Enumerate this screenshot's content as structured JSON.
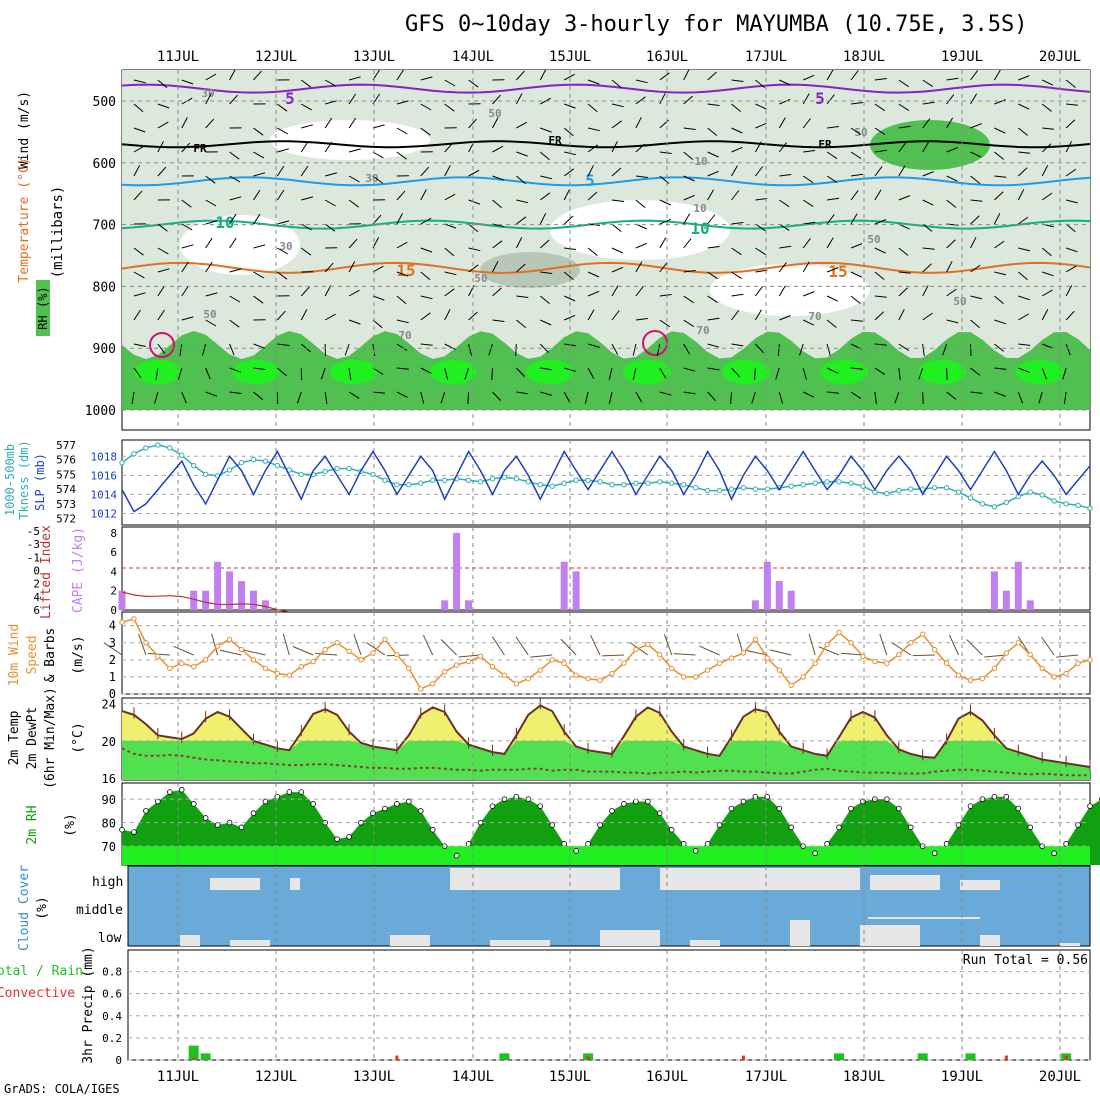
{
  "title": "GFS 0~10day 3-hourly for MAYUMBA (10.75E, 3.5S)",
  "credit": "GrADS: COLA/IGES",
  "date_labels": [
    "11JUL",
    "12JUL",
    "13JUL",
    "14JUL",
    "15JUL",
    "16JUL",
    "17JUL",
    "18JUL",
    "19JUL",
    "20JUL"
  ],
  "panels": {
    "upper": {
      "axis_label_1": "(millibars)",
      "rh_label": "RH (%)",
      "temp_label": "Temperature (°C)",
      "wind_label": "Wind (m/s)",
      "ticks": [
        "500",
        "600",
        "700",
        "800",
        "900",
        "1000"
      ],
      "contour_labels": [
        "5",
        "5",
        "FR",
        "FR",
        "FR",
        "5",
        "10",
        "10",
        "15",
        "15",
        "30",
        "30",
        "30",
        "50",
        "50",
        "50",
        "50",
        "50",
        "50",
        "70",
        "70",
        "70",
        "10",
        "10"
      ]
    },
    "slp": {
      "label_a": "1000-500mb",
      "label_b": "Tkness (dm)",
      "label_c": "SLP (mb)",
      "left_ticks": [
        "577",
        "576",
        "575",
        "574",
        "573",
        "572"
      ],
      "right_ticks": [
        "1018",
        "1016",
        "1014",
        "1012"
      ]
    },
    "cape": {
      "label_a": "Lifted Index",
      "label_b": "CAPE (J/kg)",
      "left_ticks": [
        "-5",
        "-3",
        "-1",
        "0",
        "2",
        "4",
        "6"
      ],
      "right_ticks": [
        "8",
        "6",
        "4",
        "2",
        "0"
      ]
    },
    "wind10": {
      "label_a": "10m Wind",
      "label_b": "Speed",
      "label_c": "& Barbs",
      "label_d": "(m/s)",
      "ticks": [
        "4",
        "3",
        "2",
        "1",
        "0"
      ]
    },
    "temp2m": {
      "label_a": "2m Temp",
      "label_b": "2m DewPt",
      "label_c": "(6hr Min/Max)",
      "label_d": "(°C)",
      "ticks": [
        "24",
        "20",
        "16"
      ]
    },
    "rh2m": {
      "label_a": "2m RH",
      "label_b": "(%)",
      "ticks": [
        "90",
        "80",
        "70"
      ]
    },
    "cloud": {
      "label_a": "Cloud Cover",
      "label_b": "(%)",
      "levels": [
        "high",
        "middle",
        "low"
      ]
    },
    "precip": {
      "label_a": "Total / Rain",
      "label_b": "Convective",
      "label_c": "3hr Precip (mm)",
      "ticks": [
        "0.8",
        "0.6",
        "0.4",
        "0.2",
        "0"
      ],
      "run_total": "Run Total = 0.56"
    }
  },
  "colors": {
    "rh_dark": "#50c050",
    "rh_light": "#dde8dd",
    "slp": "#1f3fbf",
    "thick": "#30b0b0",
    "cape": "#c080f0",
    "li": "#c03030",
    "wind": "#e89030",
    "temp_fill": "#f0f070",
    "dew_fill": "#50e050",
    "rh_fill": "#10a010",
    "cloud_sky": "#6aaad8",
    "cloud": "#e6e6e6",
    "precip_total": "#20c020",
    "precip_conv": "#e03030"
  },
  "chart_data": [
    {
      "type": "area",
      "name": "Relative humidity / temperature / wind (pressure levels)",
      "x": [
        "11JUL",
        "12JUL",
        "13JUL",
        "14JUL",
        "15JUL",
        "16JUL",
        "17JUL",
        "18JUL",
        "19JUL",
        "20JUL"
      ],
      "ylim": [
        1000,
        450
      ],
      "ylabel": "millibars",
      "isotherms": [
        {
          "name": "FR",
          "level_mb": 570
        },
        {
          "name": "5",
          "level_mb": 630
        },
        {
          "name": "10",
          "level_mb": 700
        },
        {
          "name": "15",
          "level_mb": 770
        }
      ]
    },
    {
      "type": "line",
      "title": "Sea level pressure",
      "ylabel": "SLP (mb)",
      "ylim": [
        1011,
        1019.5
      ],
      "series": [
        {
          "name": "SLP",
          "values": [
            1014.5,
            1012.2,
            1013,
            1014.5,
            1016,
            1017.5,
            1015,
            1013,
            1015.5,
            1018,
            1016.5,
            1014,
            1016.5,
            1018.5,
            1016,
            1013.5,
            1016.5,
            1018,
            1016,
            1014,
            1016.5,
            1018.5,
            1016.5,
            1014,
            1016,
            1018,
            1016.5,
            1013.5,
            1016,
            1018.5,
            1016.5,
            1014,
            1016.5,
            1018,
            1016,
            1013.5,
            1016,
            1018.5,
            1016.5,
            1014.5,
            1016.5,
            1018.5,
            1016.5,
            1014,
            1016,
            1018,
            1016.5,
            1014,
            1016,
            1018.5,
            1016.5,
            1013.5,
            1016,
            1018,
            1016.5,
            1014.5,
            1016.5,
            1018.5,
            1016.5,
            1014.5,
            1016,
            1018,
            1016.5,
            1014.5,
            1016.5,
            1018,
            1016.5,
            1014,
            1016,
            1018,
            1016.5,
            1014.5,
            1016.5,
            1018.5,
            1016.5,
            1014,
            1016,
            1017.5,
            1016,
            1014,
            1015.5,
            1017
          ]
        }
      ]
    },
    {
      "type": "line",
      "title": "1000-500mb thickness",
      "ylabel": "Tkness (dm)",
      "ylim": [
        571.7,
        577.2
      ],
      "series": [
        {
          "name": "Thickness",
          "values": [
            575.8,
            576.4,
            576.8,
            577,
            576.8,
            576.3,
            575.6,
            575,
            574.9,
            575.3,
            575.8,
            576,
            575.9,
            575.6,
            575.3,
            575,
            575,
            575.2,
            575.4,
            575.4,
            575.2,
            575,
            574.6,
            574.3,
            574.3,
            574.4,
            574.6,
            574.6,
            574.7,
            574.6,
            574.5,
            574.7,
            574.8,
            574.7,
            574.5,
            574.3,
            574.2,
            574.4,
            574.6,
            574.6,
            574.5,
            574.3,
            574.3,
            574.4,
            574.4,
            574.5,
            574.4,
            574.3,
            574.1,
            573.9,
            573.9,
            574,
            574.1,
            574,
            574,
            574.1,
            574.2,
            574.3,
            574.4,
            574.5,
            574.5,
            574.4,
            574.2,
            573.8,
            573.7,
            573.9,
            574,
            574,
            574.1,
            574.1,
            573.8,
            573.4,
            573.0,
            572.8,
            573.1,
            573.5,
            573.8,
            573.6,
            573.2,
            573,
            572.9,
            572.7
          ]
        }
      ]
    },
    {
      "type": "bar",
      "title": "CAPE",
      "ylabel": "CAPE (J/kg)",
      "ylim": [
        0,
        8.5
      ],
      "series": [
        {
          "name": "CAPE",
          "values": [
            2,
            0,
            0,
            0,
            0,
            0,
            2,
            2,
            5,
            4,
            3,
            2,
            1,
            0,
            0,
            0,
            0,
            0,
            0,
            0,
            0,
            0,
            0,
            0,
            0,
            0,
            0,
            1,
            8,
            1,
            0,
            0,
            0,
            0,
            0,
            0,
            0,
            5,
            4,
            0,
            0,
            0,
            0,
            0,
            0,
            0,
            0,
            0,
            0,
            0,
            0,
            0,
            0,
            1,
            5,
            3,
            2,
            0,
            0,
            0,
            0,
            0,
            0,
            0,
            0,
            0,
            0,
            0,
            0,
            0,
            0,
            0,
            0,
            4,
            2,
            5,
            1,
            0,
            0,
            0,
            0,
            0,
            0,
            0
          ]
        }
      ]
    },
    {
      "type": "line",
      "title": "10m wind speed",
      "ylabel": "Speed (m/s)",
      "ylim": [
        0,
        4.8
      ],
      "series": [
        {
          "name": "Speed",
          "values": [
            4.2,
            4.4,
            3.0,
            2.2,
            1.5,
            1.8,
            1.6,
            2.0,
            2.8,
            3.2,
            2.6,
            2.0,
            1.5,
            1.2,
            1.1,
            1.6,
            1.9,
            2.6,
            3.0,
            2.5,
            2.0,
            2.4,
            3.2,
            2.3,
            1.5,
            0.3,
            0.6,
            1.3,
            1.7,
            1.9,
            2.2,
            1.6,
            1.1,
            0.6,
            0.9,
            1.4,
            2.0,
            1.8,
            1.1,
            0.9,
            0.8,
            1.2,
            1.8,
            2.6,
            2.9,
            2.3,
            1.5,
            1.0,
            1.0,
            1.4,
            1.8,
            2.1,
            2.4,
            3.2,
            2.1,
            1.4,
            0.5,
            1.0,
            1.8,
            2.9,
            3.6,
            3.0,
            2.2,
            1.9,
            1.8,
            2.3,
            3.0,
            3.5,
            2.6,
            1.8,
            1.1,
            0.8,
            0.9,
            1.5,
            2.4,
            3.0,
            2.3,
            1.5,
            1.0,
            1.2,
            1.8,
            2.0
          ]
        }
      ]
    },
    {
      "type": "area",
      "title": "2m temperature / dewpoint",
      "ylabel": "°C",
      "ylim": [
        15.8,
        24.5
      ],
      "series": [
        {
          "name": "Temp",
          "values": [
            23.2,
            22.8,
            21.8,
            20.6,
            20.4,
            20.2,
            20.8,
            22.4,
            23.1,
            22.6,
            21.3,
            20.0,
            19.6,
            19.2,
            19.0,
            20.9,
            22.9,
            23.4,
            22.8,
            21.0,
            19.8,
            19.4,
            19.2,
            19.0,
            20.6,
            22.8,
            23.6,
            23.1,
            21.0,
            19.6,
            19.2,
            18.8,
            18.6,
            20.6,
            22.8,
            23.8,
            23.2,
            21.0,
            19.4,
            19.0,
            18.8,
            18.6,
            20.5,
            22.6,
            23.6,
            23.0,
            21.0,
            19.4,
            19.0,
            18.6,
            18.4,
            20.4,
            22.6,
            23.4,
            23.1,
            21.0,
            19.4,
            19.0,
            18.6,
            18.4,
            20.4,
            22.5,
            23.1,
            22.5,
            20.6,
            19.1,
            18.6,
            18.3,
            18.2,
            20.0,
            22.4,
            23.1,
            22.2,
            20.6,
            19.2,
            18.8,
            18.4,
            18.0,
            17.8,
            17.6,
            17.4,
            17.2
          ]
        },
        {
          "name": "Dewpoint",
          "values": [
            19.2,
            18.6,
            18.4,
            18.4,
            18.5,
            18.4,
            18.2,
            18.0,
            17.9,
            17.8,
            17.7,
            17.6,
            17.6,
            17.5,
            17.4,
            17.4,
            17.5,
            17.5,
            17.4,
            17.3,
            17.2,
            17.1,
            17.1,
            17.0,
            17.0,
            17.1,
            17.1,
            17.0,
            16.9,
            16.9,
            16.8,
            16.9,
            16.9,
            16.9,
            17.0,
            17.0,
            16.8,
            16.9,
            16.9,
            16.7,
            16.7,
            16.7,
            16.6,
            16.6,
            16.5,
            16.6,
            16.6,
            16.7,
            16.6,
            16.7,
            16.8,
            16.8,
            16.7,
            16.7,
            16.6,
            16.5,
            16.5,
            16.7,
            16.9,
            17.0,
            16.8,
            16.7,
            16.6,
            16.6,
            16.6,
            16.5,
            16.5,
            16.5,
            16.7,
            16.8,
            16.9,
            16.9,
            16.8,
            16.7,
            16.6,
            16.5,
            16.4,
            16.5,
            16.4,
            16.3,
            16.3,
            16.3
          ]
        }
      ]
    },
    {
      "type": "area",
      "title": "2m relative humidity",
      "ylabel": "(%)",
      "ylim": [
        62,
        96
      ],
      "series": [
        {
          "name": "2m RH",
          "values": [
            77,
            76,
            85,
            89,
            93,
            94,
            88,
            82,
            79,
            80,
            78,
            84,
            89,
            91,
            93,
            93,
            88,
            80,
            73,
            74,
            80,
            84,
            86,
            88,
            89,
            85,
            77,
            70,
            66,
            71,
            80,
            87,
            90,
            91,
            90,
            87,
            79,
            71,
            68,
            71,
            79,
            85,
            88,
            89,
            89,
            84,
            77,
            71,
            68,
            71,
            79,
            86,
            89,
            91,
            91,
            86,
            78,
            70,
            67,
            71,
            78,
            86,
            89,
            90,
            90,
            86,
            78,
            70,
            67,
            71,
            79,
            87,
            90,
            91,
            91,
            86,
            78,
            70,
            67,
            71,
            79,
            87,
            90,
            91
          ]
        }
      ]
    },
    {
      "type": "bar",
      "title": "Cloud cover",
      "ylabel": "(%)",
      "categories": [
        "high",
        "middle",
        "low"
      ]
    },
    {
      "type": "bar",
      "title": "3hr precipitation",
      "ylabel": "3hr Precip (mm)",
      "ylim": [
        0,
        0.95
      ],
      "series": [
        {
          "name": "Total",
          "values": [
            0,
            0,
            0,
            0,
            0,
            0,
            0.13,
            0.06,
            0,
            0,
            0,
            0,
            0,
            0,
            0,
            0,
            0,
            0,
            0,
            0,
            0,
            0,
            0,
            0,
            0,
            0,
            0,
            0,
            0,
            0,
            0,
            0,
            0.06,
            0,
            0,
            0,
            0,
            0,
            0,
            0.06,
            0,
            0,
            0,
            0,
            0,
            0,
            0,
            0,
            0,
            0,
            0,
            0,
            0,
            0,
            0,
            0,
            0,
            0,
            0,
            0,
            0.06,
            0,
            0,
            0,
            0,
            0,
            0,
            0.06,
            0,
            0,
            0,
            0.06,
            0,
            0,
            0,
            0,
            0,
            0,
            0,
            0.06,
            0,
            0
          ]
        },
        {
          "name": "Convective",
          "values": [
            0,
            0,
            0,
            0,
            0,
            0,
            0.02,
            0,
            0,
            0,
            0,
            0,
            0,
            0,
            0,
            0,
            0,
            0,
            0,
            0,
            0,
            0,
            0,
            0.04,
            0,
            0,
            0,
            0,
            0,
            0,
            0,
            0,
            0,
            0,
            0,
            0,
            0,
            0,
            0,
            0.03,
            0,
            0,
            0,
            0,
            0,
            0,
            0,
            0,
            0,
            0,
            0,
            0,
            0.04,
            0,
            0,
            0,
            0,
            0,
            0,
            0,
            0,
            0,
            0,
            0,
            0,
            0,
            0,
            0,
            0,
            0,
            0,
            0,
            0,
            0,
            0.04,
            0,
            0,
            0,
            0,
            0.04,
            0,
            0
          ]
        }
      ],
      "run_total": 0.56
    }
  ]
}
